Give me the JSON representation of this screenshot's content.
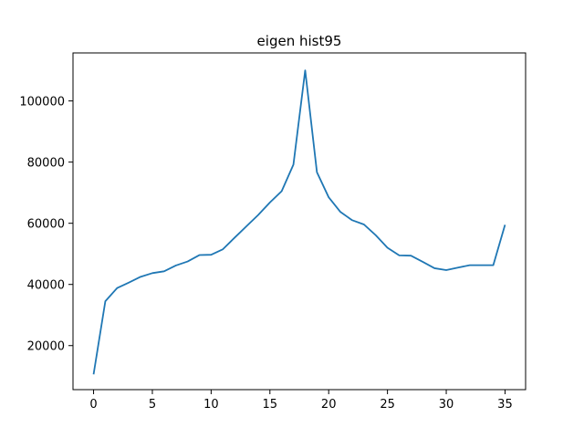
{
  "chart_data": {
    "type": "line",
    "title": "eigen hist95",
    "xlabel": "",
    "ylabel": "",
    "xlim": [
      -1.75,
      36.75
    ],
    "ylim": [
      5600,
      115700
    ],
    "grid": false,
    "xticks": [
      0,
      5,
      10,
      15,
      20,
      25,
      30,
      35
    ],
    "xtick_labels": [
      "0",
      "5",
      "10",
      "15",
      "20",
      "25",
      "30",
      "35"
    ],
    "yticks": [
      20000,
      40000,
      60000,
      80000,
      100000
    ],
    "ytick_labels": [
      "20000",
      "40000",
      "60000",
      "80000",
      "100000"
    ],
    "series": [
      {
        "color": "#1f77b4",
        "x": [
          0,
          1,
          2,
          3,
          4,
          5,
          6,
          7,
          8,
          9,
          10,
          11,
          12,
          13,
          14,
          15,
          16,
          17,
          18,
          19,
          20,
          21,
          22,
          23,
          24,
          25,
          26,
          27,
          28,
          29,
          30,
          31,
          32,
          33,
          34,
          35
        ],
        "y": [
          10600,
          34500,
          38800,
          40600,
          42500,
          43700,
          44300,
          46200,
          47500,
          49600,
          49700,
          51500,
          55300,
          59000,
          62700,
          66800,
          70500,
          79200,
          110000,
          76700,
          68500,
          63700,
          61000,
          59600,
          56100,
          52000,
          49500,
          49400,
          47400,
          45300,
          44700,
          45500,
          46300,
          46300,
          46300,
          59500
        ]
      }
    ]
  }
}
